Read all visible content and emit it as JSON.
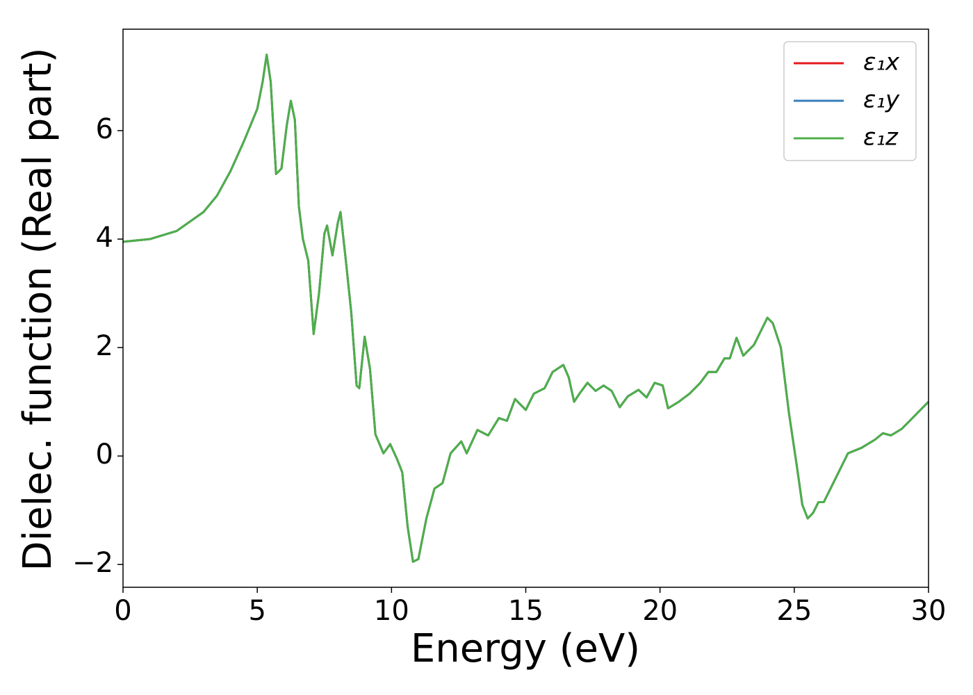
{
  "chart_data": {
    "type": "line",
    "xlabel": "Energy (eV)",
    "ylabel": "Dielec. function (Real part)",
    "x": [
      0,
      1,
      2,
      3,
      3.5,
      4,
      4.5,
      5,
      5.2,
      5.35,
      5.5,
      5.7,
      5.9,
      6.1,
      6.25,
      6.4,
      6.55,
      6.7,
      6.9,
      7.1,
      7.3,
      7.5,
      7.6,
      7.8,
      8.0,
      8.1,
      8.3,
      8.5,
      8.7,
      8.8,
      9.0,
      9.2,
      9.4,
      9.7,
      9.95,
      10.2,
      10.4,
      10.6,
      10.8,
      11.0,
      11.3,
      11.6,
      11.9,
      12.2,
      12.6,
      12.8,
      13.2,
      13.6,
      14.0,
      14.3,
      14.6,
      15.0,
      15.3,
      15.7,
      16.0,
      16.4,
      16.6,
      16.8,
      17.0,
      17.3,
      17.6,
      17.9,
      18.2,
      18.5,
      18.8,
      19.2,
      19.5,
      19.8,
      20.1,
      20.3,
      20.7,
      21.1,
      21.5,
      21.8,
      22.1,
      22.4,
      22.6,
      22.85,
      23.1,
      23.5,
      23.8,
      24.0,
      24.2,
      24.5,
      24.8,
      25.1,
      25.3,
      25.5,
      25.7,
      25.9,
      26.1,
      26.4,
      26.7,
      27.0,
      27.5,
      28.0,
      28.3,
      28.6,
      29.0,
      29.5,
      30
    ],
    "series": [
      {
        "name": "ε₁x",
        "color": "#e41a1c",
        "values": [
          3.95,
          4.0,
          4.15,
          4.5,
          4.8,
          5.25,
          5.8,
          6.4,
          6.9,
          7.4,
          6.9,
          5.2,
          5.3,
          6.1,
          6.55,
          6.2,
          4.6,
          4.0,
          3.6,
          2.25,
          3.0,
          4.1,
          4.25,
          3.7,
          4.3,
          4.5,
          3.6,
          2.65,
          1.3,
          1.25,
          2.2,
          1.6,
          0.4,
          0.05,
          0.22,
          -0.05,
          -0.3,
          -1.3,
          -1.95,
          -1.9,
          -1.15,
          -0.6,
          -0.5,
          0.05,
          0.27,
          0.05,
          0.48,
          0.38,
          0.7,
          0.65,
          1.05,
          0.85,
          1.15,
          1.25,
          1.55,
          1.68,
          1.45,
          1.0,
          1.15,
          1.35,
          1.2,
          1.3,
          1.2,
          0.9,
          1.1,
          1.22,
          1.08,
          1.35,
          1.3,
          0.88,
          1.0,
          1.15,
          1.35,
          1.55,
          1.55,
          1.8,
          1.8,
          2.18,
          1.85,
          2.05,
          2.35,
          2.55,
          2.45,
          2.0,
          0.8,
          -0.2,
          -0.9,
          -1.15,
          -1.05,
          -0.85,
          -0.85,
          -0.55,
          -0.25,
          0.05,
          0.15,
          0.3,
          0.42,
          0.38,
          0.5,
          0.75,
          1.0
        ]
      },
      {
        "name": "ε₁y",
        "color": "#377eb8",
        "values": [
          3.95,
          4.0,
          4.15,
          4.5,
          4.8,
          5.25,
          5.8,
          6.4,
          6.9,
          7.4,
          6.9,
          5.2,
          5.3,
          6.1,
          6.55,
          6.2,
          4.6,
          4.0,
          3.6,
          2.25,
          3.0,
          4.1,
          4.25,
          3.7,
          4.3,
          4.5,
          3.6,
          2.65,
          1.3,
          1.25,
          2.2,
          1.6,
          0.4,
          0.05,
          0.22,
          -0.05,
          -0.3,
          -1.3,
          -1.95,
          -1.9,
          -1.15,
          -0.6,
          -0.5,
          0.05,
          0.27,
          0.05,
          0.48,
          0.38,
          0.7,
          0.65,
          1.05,
          0.85,
          1.15,
          1.25,
          1.55,
          1.68,
          1.45,
          1.0,
          1.15,
          1.35,
          1.2,
          1.3,
          1.2,
          0.9,
          1.1,
          1.22,
          1.08,
          1.35,
          1.3,
          0.88,
          1.0,
          1.15,
          1.35,
          1.55,
          1.55,
          1.8,
          1.8,
          2.18,
          1.85,
          2.05,
          2.35,
          2.55,
          2.45,
          2.0,
          0.8,
          -0.2,
          -0.9,
          -1.15,
          -1.05,
          -0.85,
          -0.85,
          -0.55,
          -0.25,
          0.05,
          0.15,
          0.3,
          0.42,
          0.38,
          0.5,
          0.75,
          1.0
        ]
      },
      {
        "name": "ε₁z",
        "color": "#4daf4a",
        "values": [
          3.95,
          4.0,
          4.15,
          4.5,
          4.8,
          5.25,
          5.8,
          6.4,
          6.9,
          7.4,
          6.9,
          5.2,
          5.3,
          6.1,
          6.55,
          6.2,
          4.6,
          4.0,
          3.6,
          2.25,
          3.0,
          4.1,
          4.25,
          3.7,
          4.3,
          4.5,
          3.6,
          2.65,
          1.3,
          1.25,
          2.2,
          1.6,
          0.4,
          0.05,
          0.22,
          -0.05,
          -0.3,
          -1.3,
          -1.95,
          -1.9,
          -1.15,
          -0.6,
          -0.5,
          0.05,
          0.27,
          0.05,
          0.48,
          0.38,
          0.7,
          0.65,
          1.05,
          0.85,
          1.15,
          1.25,
          1.55,
          1.68,
          1.45,
          1.0,
          1.15,
          1.35,
          1.2,
          1.3,
          1.2,
          0.9,
          1.1,
          1.22,
          1.08,
          1.35,
          1.3,
          0.88,
          1.0,
          1.15,
          1.35,
          1.55,
          1.55,
          1.8,
          1.8,
          2.18,
          1.85,
          2.05,
          2.35,
          2.55,
          2.45,
          2.0,
          0.8,
          -0.2,
          -0.9,
          -1.15,
          -1.05,
          -0.85,
          -0.85,
          -0.55,
          -0.25,
          0.05,
          0.15,
          0.3,
          0.42,
          0.38,
          0.5,
          0.75,
          1.0
        ]
      }
    ],
    "xlim": [
      0,
      30
    ],
    "xticks": [
      0,
      5,
      10,
      15,
      20,
      25,
      30
    ],
    "ylim": [
      -2.42,
      7.87
    ],
    "yticks": [
      {
        "value": -2,
        "label": "−2"
      },
      0,
      2,
      4,
      6
    ],
    "grid": false,
    "legend": "upper right"
  }
}
